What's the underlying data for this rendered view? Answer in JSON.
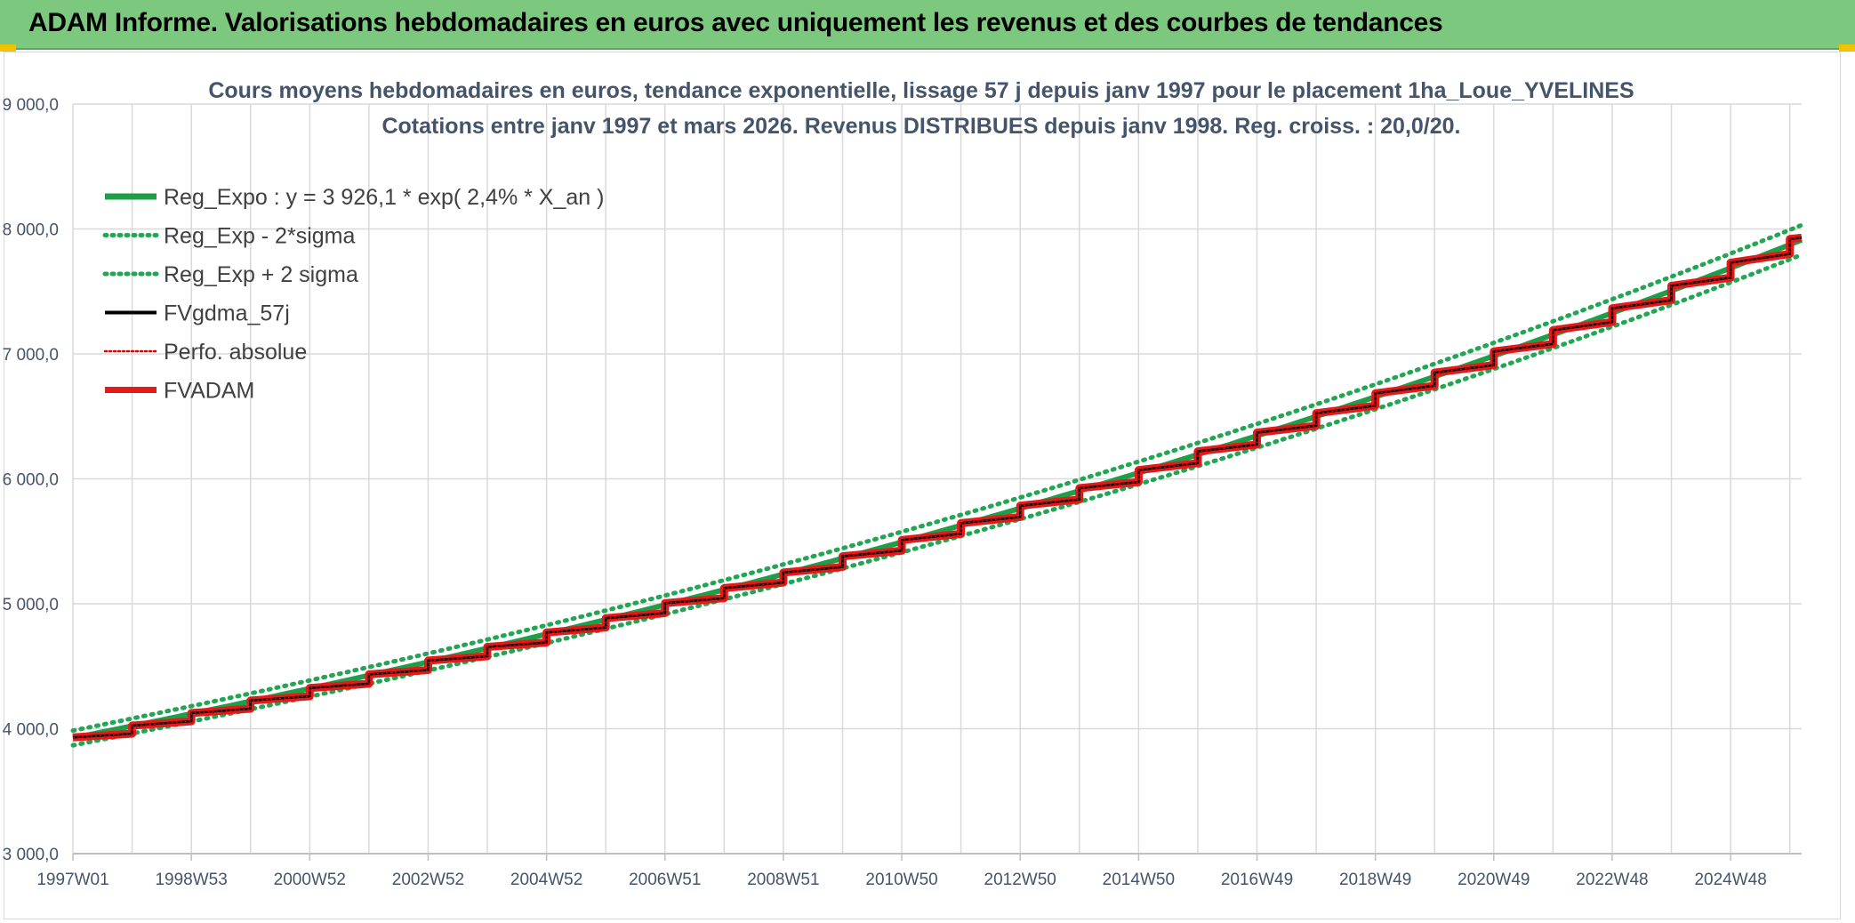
{
  "header": {
    "title": "ADAM Informe. Valorisations hebdomadaires en euros avec uniquement les revenus et des courbes de tendances"
  },
  "colors": {
    "header_bg": "#7dc87f",
    "accent_corner": "#f2c200",
    "reg_expo": "#1f9e4a",
    "reg_band": "#22a653",
    "fvgdma": "#000000",
    "perfo": "#e00000",
    "fvadam": "#e31a1a",
    "grid": "#d9d9d9",
    "text": "#44546a"
  },
  "chart_data": {
    "type": "line",
    "title_line1": "Cours moyens hebdomadaires en euros, tendance exponentielle, lissage 57 j depuis janv 1997 pour le placement 1ha_Loue_YVELINES",
    "title_line2": "Cotations entre janv 1997 et mars 2026. Revenus DISTRIBUES depuis janv 1998. Reg. croiss. : 20,0/20.",
    "xlabel": "",
    "ylabel": "",
    "ylim": [
      3000,
      9000
    ],
    "y_ticks": [
      "3 000,0",
      "4 000,0",
      "5 000,0",
      "6 000,0",
      "7 000,0",
      "8 000,0",
      "9 000,0"
    ],
    "x_range_years": [
      1997.0,
      2026.2
    ],
    "x_tick_labels": [
      "1997W01",
      "1998W53",
      "2000W52",
      "2002W52",
      "2004W52",
      "2006W51",
      "2008W51",
      "2010W50",
      "2012W50",
      "2014W50",
      "2016W49",
      "2018W49",
      "2020W49",
      "2022W48",
      "2024W48"
    ],
    "grid": true,
    "legend_position": "top-left",
    "regression": {
      "a": 3926.1,
      "rate_pct": 2.4,
      "sigma_band_pct": 1.5
    },
    "steps": {
      "years": [
        1997,
        1998,
        1999,
        2000,
        2001,
        2002,
        2003,
        2004,
        2005,
        2006,
        2007,
        2008,
        2009,
        2010,
        2011,
        2012,
        2013,
        2014,
        2015,
        2016,
        2017,
        2018,
        2019,
        2020,
        2021,
        2022,
        2023,
        2024,
        2025,
        2026
      ],
      "start_values": [
        3930,
        4025,
        4125,
        4225,
        4325,
        4435,
        4545,
        4655,
        4770,
        4885,
        5005,
        5125,
        5250,
        5380,
        5510,
        5645,
        5785,
        5925,
        6070,
        6220,
        6370,
        6525,
        6685,
        6850,
        7020,
        7190,
        7365,
        7545,
        7730,
        7920
      ],
      "end_values": [
        3960,
        4060,
        4160,
        4260,
        4360,
        4470,
        4580,
        4690,
        4810,
        4925,
        5045,
        5170,
        5295,
        5425,
        5560,
        5695,
        5835,
        5975,
        6125,
        6275,
        6425,
        6585,
        6745,
        6910,
        7080,
        7255,
        7430,
        7610,
        7800,
        7930
      ]
    },
    "series": [
      {
        "name": "Reg_Expo : y = 3 926,1 * exp( 2,4% *  X_an )",
        "style": "solid-thick",
        "color": "#1f9e4a"
      },
      {
        "name": "Reg_Exp - 2*sigma",
        "style": "dotted",
        "color": "#22a653"
      },
      {
        "name": "Reg_Exp + 2 sigma",
        "style": "dotted",
        "color": "#22a653"
      },
      {
        "name": "FVgdma_57j",
        "style": "solid",
        "color": "#000000"
      },
      {
        "name": "Perfo. absolue",
        "style": "dotted-thin",
        "color": "#e00000"
      },
      {
        "name": "FVADAM",
        "style": "solid-thick",
        "color": "#e31a1a"
      }
    ]
  }
}
